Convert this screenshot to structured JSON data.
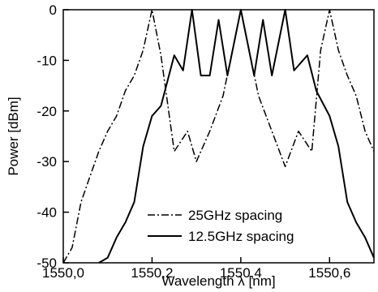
{
  "chart_data": {
    "type": "line",
    "title": "",
    "xlabel": "Wavelength λ [nm]",
    "ylabel": "Power [dBm]",
    "xlim": [
      1550.0,
      1550.7
    ],
    "ylim": [
      -50,
      0
    ],
    "x_ticks": [
      1550.0,
      1550.2,
      1550.4,
      1550.6
    ],
    "x_tick_labels": [
      "1550,0",
      "1550,2",
      "1550,4",
      "1550,6"
    ],
    "y_ticks": [
      0,
      -10,
      -20,
      -30,
      -40,
      -50
    ],
    "y_tick_labels": [
      "0",
      "-10",
      "-20",
      "-30",
      "-40",
      "-50"
    ],
    "grid": false,
    "legend_position": "bottom-center",
    "series": [
      {
        "name": "25GHz spacing",
        "line_style": "dash-dot",
        "color": "#000000",
        "x": [
          1550.0,
          1550.02,
          1550.04,
          1550.06,
          1550.08,
          1550.1,
          1550.12,
          1550.14,
          1550.16,
          1550.18,
          1550.2,
          1550.22,
          1550.25,
          1550.28,
          1550.3,
          1550.33,
          1550.36,
          1550.4,
          1550.44,
          1550.47,
          1550.5,
          1550.53,
          1550.56,
          1550.58,
          1550.6,
          1550.62,
          1550.64,
          1550.66,
          1550.68,
          1550.7
        ],
        "y": [
          -50,
          -47,
          -38,
          -33,
          -28,
          -24,
          -21,
          -16,
          -13,
          -8,
          0,
          -9,
          -28,
          -24,
          -30,
          -24,
          -17,
          0,
          -17,
          -24,
          -31,
          -24,
          -28,
          -8,
          0,
          -8,
          -13,
          -17,
          -24,
          -28
        ]
      },
      {
        "name": "12.5GHz spacing",
        "line_style": "solid",
        "color": "#000000",
        "x": [
          1550.08,
          1550.1,
          1550.12,
          1550.14,
          1550.16,
          1550.18,
          1550.2,
          1550.22,
          1550.25,
          1550.27,
          1550.29,
          1550.31,
          1550.33,
          1550.35,
          1550.37,
          1550.4,
          1550.43,
          1550.45,
          1550.47,
          1550.5,
          1550.52,
          1550.55,
          1550.57,
          1550.6,
          1550.62,
          1550.64,
          1550.66,
          1550.68,
          1550.7
        ],
        "y": [
          -50,
          -49,
          -45,
          -42,
          -38,
          -27,
          -21,
          -19,
          -9,
          -12,
          0,
          -13,
          -13,
          -2,
          -13,
          0,
          -13,
          -2,
          -13,
          0,
          -12,
          -9,
          -16,
          -21,
          -27,
          -38,
          -42,
          -45,
          -49
        ]
      }
    ]
  }
}
